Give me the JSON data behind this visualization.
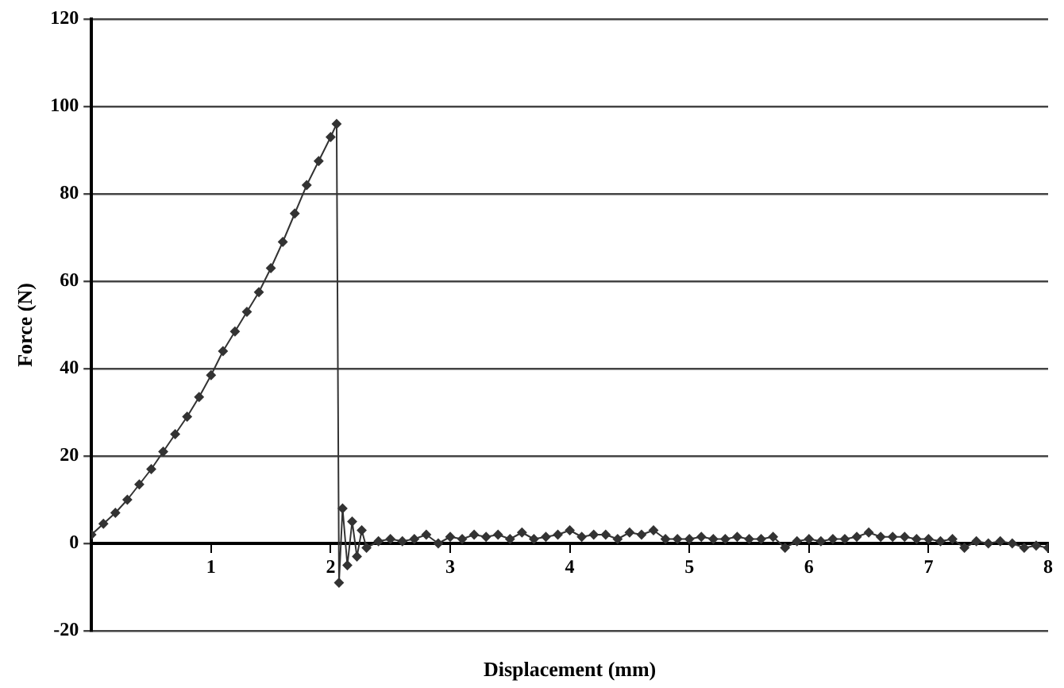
{
  "chart_data": {
    "type": "line",
    "xlabel": "Displacement (mm)",
    "ylabel": "Force (N)",
    "x": [
      0,
      0.1,
      0.2,
      0.3,
      0.4,
      0.5,
      0.6,
      0.7,
      0.8,
      0.9,
      1.0,
      1.1,
      1.2,
      1.3,
      1.4,
      1.5,
      1.6,
      1.7,
      1.8,
      1.9,
      2.0,
      2.05,
      2.07,
      2.1,
      2.14,
      2.18,
      2.22,
      2.26,
      2.3,
      2.4,
      2.5,
      2.6,
      2.7,
      2.8,
      2.9,
      3.0,
      3.1,
      3.2,
      3.3,
      3.4,
      3.5,
      3.6,
      3.7,
      3.8,
      3.9,
      4.0,
      4.1,
      4.2,
      4.3,
      4.4,
      4.5,
      4.6,
      4.7,
      4.8,
      4.9,
      5.0,
      5.1,
      5.2,
      5.3,
      5.4,
      5.5,
      5.6,
      5.7,
      5.8,
      5.9,
      6.0,
      6.1,
      6.2,
      6.3,
      6.4,
      6.5,
      6.6,
      6.7,
      6.8,
      6.9,
      7.0,
      7.1,
      7.2,
      7.3,
      7.4,
      7.5,
      7.6,
      7.7,
      7.8,
      7.9,
      8.0
    ],
    "series": [
      {
        "color": "#333333",
        "values": [
          2,
          4.5,
          7,
          10,
          13.5,
          17,
          21,
          25,
          29,
          33.5,
          38.5,
          44,
          48.5,
          53,
          57.5,
          63,
          69,
          75.5,
          82,
          87.5,
          93,
          96,
          -9,
          8,
          -5,
          5,
          -3,
          3,
          -1,
          0.5,
          1,
          0.5,
          1,
          2,
          0,
          1.5,
          1,
          2,
          1.5,
          2,
          1,
          2.5,
          1,
          1.5,
          2,
          3,
          1.5,
          2,
          2,
          1,
          2.5,
          2,
          3,
          1,
          1,
          1,
          1.5,
          1,
          1,
          1.5,
          1,
          1,
          1.5,
          -1,
          0.5,
          1,
          0.5,
          1,
          1,
          1.5,
          2.5,
          1.5,
          1.5,
          1.5,
          1,
          1,
          0.5,
          1,
          -1,
          0.5,
          0,
          0.5,
          0,
          -1,
          -0.5,
          -1
        ]
      }
    ],
    "xlim": [
      0,
      8
    ],
    "xticks": [
      {
        "value": 0,
        "label": null
      },
      1,
      2,
      3,
      4,
      5,
      6,
      7,
      8
    ],
    "ylim": [
      -20,
      120
    ],
    "yticks": [
      -20,
      0,
      20,
      40,
      60,
      80,
      100,
      120
    ],
    "grid": "y",
    "legend": false,
    "marker": "diamond",
    "line_style": "solid"
  }
}
